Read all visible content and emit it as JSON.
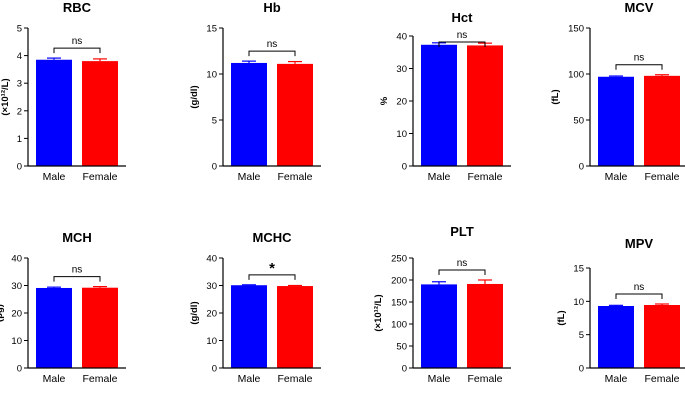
{
  "figure": {
    "colors": {
      "male": "#0000ff",
      "female": "#ff0000",
      "axis": "#000000"
    },
    "group_labels": [
      "Male",
      "Female"
    ]
  },
  "chart_data": [
    {
      "type": "bar",
      "title": "RBC",
      "ylabel": "(×10¹²/L)",
      "categories": [
        "Male",
        "Female"
      ],
      "values": [
        3.85,
        3.8
      ],
      "errors": [
        0.06,
        0.08
      ],
      "ylim": [
        0,
        5
      ],
      "yticks": [
        "0",
        "1",
        "2",
        "3",
        "4",
        "5"
      ],
      "significance": "ns"
    },
    {
      "type": "bar",
      "title": "Hb",
      "ylabel": "(g/dl)",
      "categories": [
        "Male",
        "Female"
      ],
      "values": [
        11.2,
        11.1
      ],
      "errors": [
        0.2,
        0.25
      ],
      "ylim": [
        0,
        15
      ],
      "yticks": [
        "0",
        "5",
        "10",
        "15"
      ],
      "significance": "ns"
    },
    {
      "type": "bar",
      "title": "Hct",
      "ylabel": "%",
      "categories": [
        "Male",
        "Female"
      ],
      "values": [
        37.3,
        37.1
      ],
      "errors": [
        0.6,
        0.7
      ],
      "ylim": [
        0,
        40
      ],
      "yticks": [
        "0",
        "10",
        "20",
        "30",
        "40"
      ],
      "significance": "ns"
    },
    {
      "type": "bar",
      "title": "MCV",
      "ylabel": "(fL)",
      "categories": [
        "Male",
        "Female"
      ],
      "values": [
        97,
        98
      ],
      "errors": [
        0.8,
        1.2
      ],
      "ylim": [
        0,
        150
      ],
      "yticks": [
        "0",
        "50",
        "100",
        "150"
      ],
      "significance": "ns"
    },
    {
      "type": "bar",
      "title": "MCH",
      "ylabel": "(pg)",
      "categories": [
        "Male",
        "Female"
      ],
      "values": [
        29.1,
        29.2
      ],
      "errors": [
        0.3,
        0.4
      ],
      "ylim": [
        0,
        40
      ],
      "yticks": [
        "0",
        "10",
        "20",
        "30",
        "40"
      ],
      "significance": "ns"
    },
    {
      "type": "bar",
      "title": "MCHC",
      "ylabel": "(g/dl)",
      "categories": [
        "Male",
        "Female"
      ],
      "values": [
        30.1,
        29.8
      ],
      "errors": [
        0.15,
        0.2
      ],
      "ylim": [
        0,
        40
      ],
      "yticks": [
        "0",
        "10",
        "20",
        "30",
        "40"
      ],
      "significance": "*"
    },
    {
      "type": "bar",
      "title": "PLT",
      "ylabel": "(×10¹²/L)",
      "categories": [
        "Male",
        "Female"
      ],
      "values": [
        190,
        191
      ],
      "errors": [
        6,
        9
      ],
      "ylim": [
        0,
        250
      ],
      "yticks": [
        "0",
        "50",
        "100",
        "150",
        "200",
        "250"
      ],
      "significance": "ns"
    },
    {
      "type": "bar",
      "title": "MPV",
      "ylabel": "(fL)",
      "categories": [
        "Male",
        "Female"
      ],
      "values": [
        9.3,
        9.45
      ],
      "errors": [
        0.1,
        0.15
      ],
      "ylim": [
        0,
        15
      ],
      "yticks": [
        "0",
        "5",
        "10",
        "15"
      ],
      "significance": "ns"
    }
  ]
}
